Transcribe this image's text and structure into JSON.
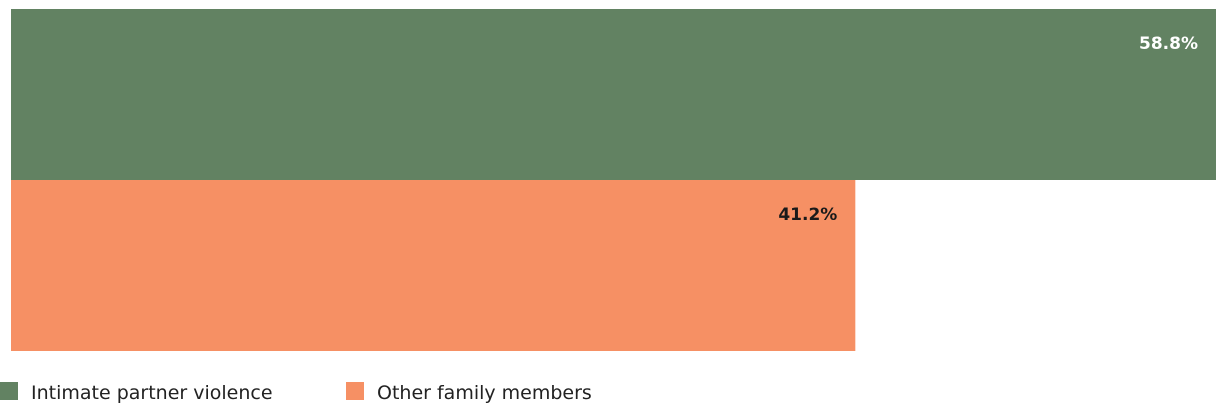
{
  "chart_data": {
    "type": "bar",
    "orientation": "horizontal",
    "unit": "%",
    "xlim": [
      0,
      58.8
    ],
    "grid": false,
    "legend_position": "bottom-left",
    "series": [
      {
        "name": "Intimate partner violence",
        "value": 58.8,
        "label": "58.8%",
        "color": "#628262",
        "label_color": "#ffffff"
      },
      {
        "name": "Other family members",
        "value": 41.2,
        "label": "41.2%",
        "color": "#f69064",
        "label_color": "#1a1a1a"
      }
    ]
  }
}
